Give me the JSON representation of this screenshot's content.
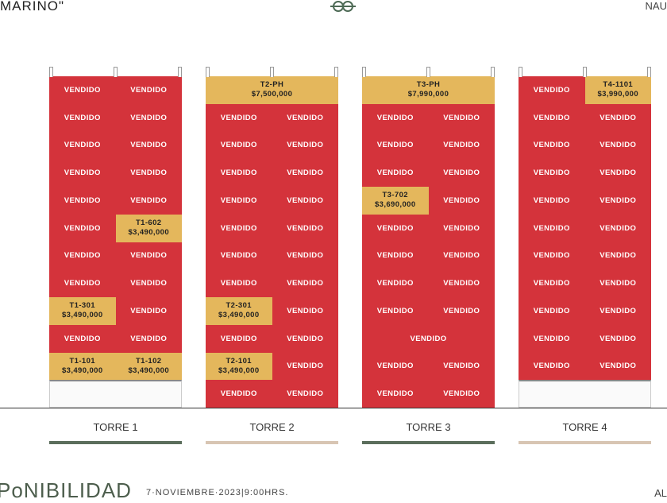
{
  "header": {
    "logo": "MARINO\"",
    "right_text": "NAU",
    "knot_icon": "knot-icon"
  },
  "colors": {
    "sold": "#d4333b",
    "available": "#e4b75c",
    "bar_green": "#5b6e5c",
    "bar_beige": "#d8c5b3"
  },
  "towers": [
    {
      "name": "TORRE 1",
      "bar": "green",
      "rows": [
        [
          {
            "s": "sold",
            "l": "VENDIDO"
          },
          {
            "s": "sold",
            "l": "VENDIDO"
          }
        ],
        [
          {
            "s": "sold",
            "l": "VENDIDO"
          },
          {
            "s": "sold",
            "l": "VENDIDO"
          }
        ],
        [
          {
            "s": "sold",
            "l": "VENDIDO"
          },
          {
            "s": "sold",
            "l": "VENDIDO"
          }
        ],
        [
          {
            "s": "sold",
            "l": "VENDIDO"
          },
          {
            "s": "sold",
            "l": "VENDIDO"
          }
        ],
        [
          {
            "s": "sold",
            "l": "VENDIDO"
          },
          {
            "s": "sold",
            "l": "VENDIDO"
          }
        ],
        [
          {
            "s": "sold",
            "l": "VENDIDO"
          },
          {
            "s": "avail",
            "l": "T1-602",
            "p": "$3,490,000"
          }
        ],
        [
          {
            "s": "sold",
            "l": "VENDIDO"
          },
          {
            "s": "sold",
            "l": "VENDIDO"
          }
        ],
        [
          {
            "s": "sold",
            "l": "VENDIDO"
          },
          {
            "s": "sold",
            "l": "VENDIDO"
          }
        ],
        [
          {
            "s": "avail",
            "l": "T1-301",
            "p": "$3,490,000"
          },
          {
            "s": "sold",
            "l": "VENDIDO"
          }
        ],
        [
          {
            "s": "sold",
            "l": "VENDIDO"
          },
          {
            "s": "sold",
            "l": "VENDIDO"
          }
        ],
        [
          {
            "s": "avail",
            "l": "T1-101",
            "p": "$3,490,000"
          },
          {
            "s": "avail",
            "l": "T1-102",
            "p": "$3,490,000"
          }
        ],
        [
          {
            "s": "lobby"
          }
        ]
      ]
    },
    {
      "name": "TORRE 2",
      "bar": "beige",
      "rows": [
        [
          {
            "s": "avail",
            "l": "T2-PH",
            "p": "$7,500,000"
          }
        ],
        [
          {
            "s": "sold",
            "l": "VENDIDO"
          },
          {
            "s": "sold",
            "l": "VENDIDO"
          }
        ],
        [
          {
            "s": "sold",
            "l": "VENDIDO"
          },
          {
            "s": "sold",
            "l": "VENDIDO"
          }
        ],
        [
          {
            "s": "sold",
            "l": "VENDIDO"
          },
          {
            "s": "sold",
            "l": "VENDIDO"
          }
        ],
        [
          {
            "s": "sold",
            "l": "VENDIDO"
          },
          {
            "s": "sold",
            "l": "VENDIDO"
          }
        ],
        [
          {
            "s": "sold",
            "l": "VENDIDO"
          },
          {
            "s": "sold",
            "l": "VENDIDO"
          }
        ],
        [
          {
            "s": "sold",
            "l": "VENDIDO"
          },
          {
            "s": "sold",
            "l": "VENDIDO"
          }
        ],
        [
          {
            "s": "sold",
            "l": "VENDIDO"
          },
          {
            "s": "sold",
            "l": "VENDIDO"
          }
        ],
        [
          {
            "s": "avail",
            "l": "T2-301",
            "p": "$3,490,000"
          },
          {
            "s": "sold",
            "l": "VENDIDO"
          }
        ],
        [
          {
            "s": "sold",
            "l": "VENDIDO"
          },
          {
            "s": "sold",
            "l": "VENDIDO"
          }
        ],
        [
          {
            "s": "avail",
            "l": "T2-101",
            "p": "$3,490,000"
          },
          {
            "s": "sold",
            "l": "VENDIDO"
          }
        ],
        [
          {
            "s": "sold",
            "l": "VENDIDO"
          },
          {
            "s": "sold",
            "l": "VENDIDO"
          }
        ]
      ]
    },
    {
      "name": "TORRE 3",
      "bar": "green",
      "rows": [
        [
          {
            "s": "avail",
            "l": "T3-PH",
            "p": "$7,990,000"
          }
        ],
        [
          {
            "s": "sold",
            "l": "VENDIDO"
          },
          {
            "s": "sold",
            "l": "VENDIDO"
          }
        ],
        [
          {
            "s": "sold",
            "l": "VENDIDO"
          },
          {
            "s": "sold",
            "l": "VENDIDO"
          }
        ],
        [
          {
            "s": "sold",
            "l": "VENDIDO"
          },
          {
            "s": "sold",
            "l": "VENDIDO"
          }
        ],
        [
          {
            "s": "avail",
            "l": "T3-702",
            "p": "$3,690,000"
          },
          {
            "s": "sold",
            "l": "VENDIDO"
          }
        ],
        [
          {
            "s": "sold",
            "l": "VENDIDO"
          },
          {
            "s": "sold",
            "l": "VENDIDO"
          }
        ],
        [
          {
            "s": "sold",
            "l": "VENDIDO"
          },
          {
            "s": "sold",
            "l": "VENDIDO"
          }
        ],
        [
          {
            "s": "sold",
            "l": "VENDIDO"
          },
          {
            "s": "sold",
            "l": "VENDIDO"
          }
        ],
        [
          {
            "s": "sold",
            "l": "VENDIDO"
          },
          {
            "s": "sold",
            "l": "VENDIDO"
          }
        ],
        [
          {
            "s": "sold",
            "l": "VENDIDO"
          }
        ],
        [
          {
            "s": "sold",
            "l": "VENDIDO"
          },
          {
            "s": "sold",
            "l": "VENDIDO"
          }
        ],
        [
          {
            "s": "sold",
            "l": "VENDIDO"
          },
          {
            "s": "sold",
            "l": "VENDIDO"
          }
        ]
      ]
    },
    {
      "name": "TORRE 4",
      "bar": "beige",
      "rows": [
        [
          {
            "s": "sold",
            "l": "VENDIDO"
          },
          {
            "s": "avail",
            "l": "T4-1101",
            "p": "$3,990,000"
          }
        ],
        [
          {
            "s": "sold",
            "l": "VENDIDO"
          },
          {
            "s": "sold",
            "l": "VENDIDO"
          }
        ],
        [
          {
            "s": "sold",
            "l": "VENDIDO"
          },
          {
            "s": "sold",
            "l": "VENDIDO"
          }
        ],
        [
          {
            "s": "sold",
            "l": "VENDIDO"
          },
          {
            "s": "sold",
            "l": "VENDIDO"
          }
        ],
        [
          {
            "s": "sold",
            "l": "VENDIDO"
          },
          {
            "s": "sold",
            "l": "VENDIDO"
          }
        ],
        [
          {
            "s": "sold",
            "l": "VENDIDO"
          },
          {
            "s": "sold",
            "l": "VENDIDO"
          }
        ],
        [
          {
            "s": "sold",
            "l": "VENDIDO"
          },
          {
            "s": "sold",
            "l": "VENDIDO"
          }
        ],
        [
          {
            "s": "sold",
            "l": "VENDIDO"
          },
          {
            "s": "sold",
            "l": "VENDIDO"
          }
        ],
        [
          {
            "s": "sold",
            "l": "VENDIDO"
          },
          {
            "s": "sold",
            "l": "VENDIDO"
          }
        ],
        [
          {
            "s": "sold",
            "l": "VENDIDO"
          },
          {
            "s": "sold",
            "l": "VENDIDO"
          }
        ],
        [
          {
            "s": "sold",
            "l": "VENDIDO"
          },
          {
            "s": "sold",
            "l": "VENDIDO"
          }
        ],
        [
          {
            "s": "lobby"
          }
        ]
      ]
    }
  ],
  "footer": {
    "title": "PoNIBILIDAD",
    "date": "7·NOVIEMBRE·2023|9:00HRS.",
    "right_text": "AL"
  }
}
